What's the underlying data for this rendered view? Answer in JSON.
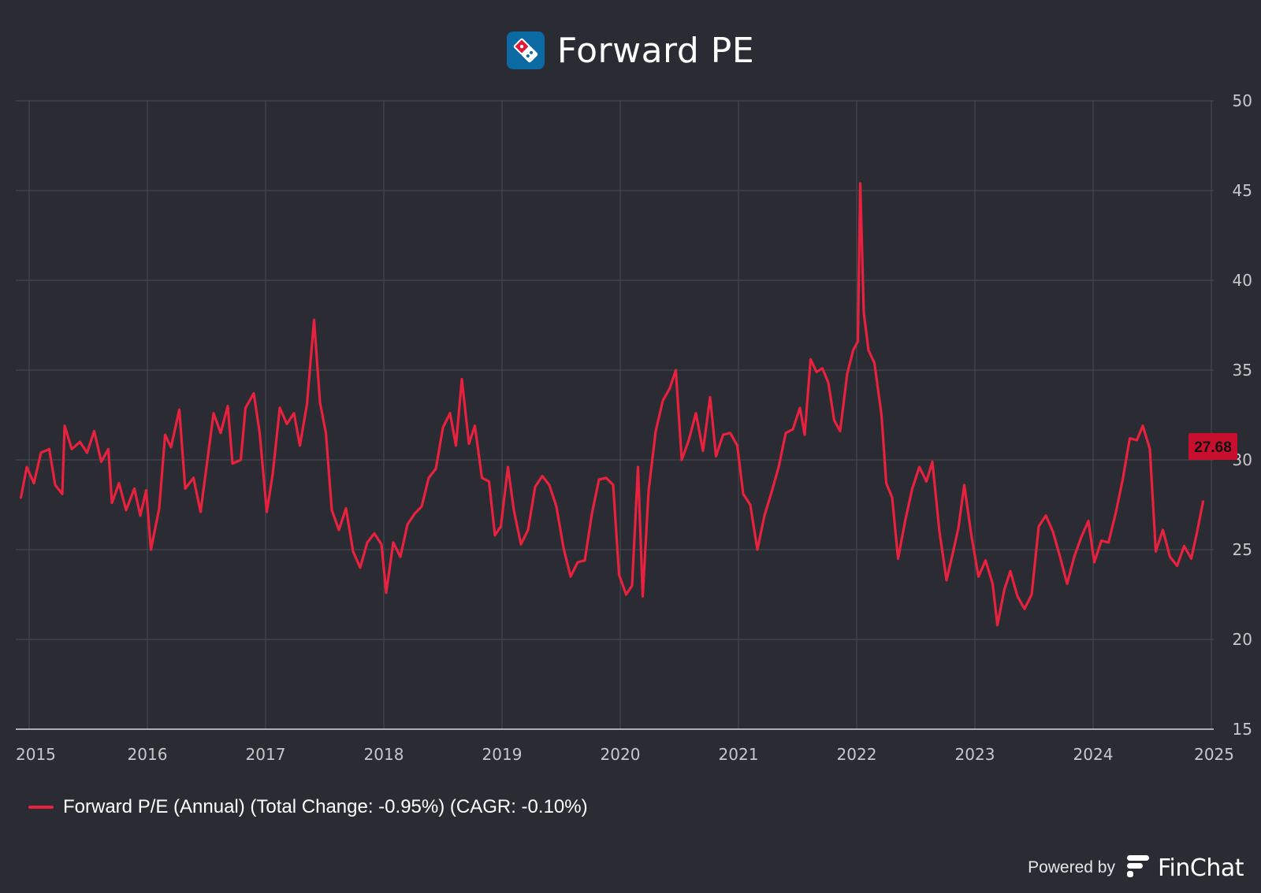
{
  "header": {
    "title": "Forward PE",
    "logo_icon": "dominos-logo-icon"
  },
  "legend": {
    "label": "Forward P/E (Annual) (Total Change: -0.95%) (CAGR: -0.10%)"
  },
  "footer": {
    "powered_label": "Powered by",
    "brand": "FinChat",
    "brand_icon": "finchat-logo-icon"
  },
  "colors": {
    "background": "#2b2c33",
    "series": "#e8213f",
    "grid": "#4a4b54",
    "axis_text": "#c8c8cc"
  },
  "chart_data": {
    "type": "line",
    "title": "Forward PE",
    "xlabel": "",
    "ylabel": "",
    "xlim": [
      2014.9,
      2025.0
    ],
    "ylim": [
      15,
      50
    ],
    "x_ticks": [
      "2015",
      "2016",
      "2017",
      "2018",
      "2019",
      "2020",
      "2021",
      "2022",
      "2023",
      "2024",
      "2025"
    ],
    "y_ticks": [
      15,
      20,
      25,
      30,
      35,
      40,
      45,
      50
    ],
    "y_axis_position": "right",
    "grid": true,
    "legend_position": "bottom-left",
    "last_value_label": "27.68",
    "series": [
      {
        "name": "Forward P/E (Annual) (Total Change: -0.95%) (CAGR: -0.10%)",
        "color": "#e8213f",
        "points": [
          [
            2014.93,
            27.9
          ],
          [
            2014.98,
            29.6
          ],
          [
            2015.04,
            28.7
          ],
          [
            2015.1,
            30.4
          ],
          [
            2015.17,
            30.6
          ],
          [
            2015.22,
            28.6
          ],
          [
            2015.28,
            28.1
          ],
          [
            2015.3,
            31.9
          ],
          [
            2015.36,
            30.6
          ],
          [
            2015.43,
            31.0
          ],
          [
            2015.49,
            30.4
          ],
          [
            2015.55,
            31.6
          ],
          [
            2015.61,
            29.9
          ],
          [
            2015.67,
            30.6
          ],
          [
            2015.7,
            27.6
          ],
          [
            2015.76,
            28.7
          ],
          [
            2015.82,
            27.2
          ],
          [
            2015.89,
            28.4
          ],
          [
            2015.94,
            26.9
          ],
          [
            2015.99,
            28.3
          ],
          [
            2016.03,
            25.0
          ],
          [
            2016.1,
            27.3
          ],
          [
            2016.15,
            31.4
          ],
          [
            2016.2,
            30.7
          ],
          [
            2016.27,
            32.8
          ],
          [
            2016.32,
            28.4
          ],
          [
            2016.39,
            29.0
          ],
          [
            2016.45,
            27.1
          ],
          [
            2016.51,
            30.1
          ],
          [
            2016.56,
            32.6
          ],
          [
            2016.62,
            31.5
          ],
          [
            2016.68,
            33.0
          ],
          [
            2016.72,
            29.8
          ],
          [
            2016.79,
            30.0
          ],
          [
            2016.83,
            32.9
          ],
          [
            2016.9,
            33.7
          ],
          [
            2016.95,
            31.5
          ],
          [
            2017.01,
            27.1
          ],
          [
            2017.06,
            29.2
          ],
          [
            2017.12,
            32.9
          ],
          [
            2017.18,
            32.0
          ],
          [
            2017.24,
            32.6
          ],
          [
            2017.29,
            30.8
          ],
          [
            2017.35,
            33.1
          ],
          [
            2017.41,
            37.8
          ],
          [
            2017.46,
            33.2
          ],
          [
            2017.51,
            31.5
          ],
          [
            2017.56,
            27.2
          ],
          [
            2017.62,
            26.1
          ],
          [
            2017.68,
            27.3
          ],
          [
            2017.74,
            24.9
          ],
          [
            2017.8,
            24.0
          ],
          [
            2017.86,
            25.4
          ],
          [
            2017.92,
            25.9
          ],
          [
            2017.98,
            25.3
          ],
          [
            2018.02,
            22.6
          ],
          [
            2018.08,
            25.4
          ],
          [
            2018.14,
            24.6
          ],
          [
            2018.2,
            26.4
          ],
          [
            2018.26,
            27.0
          ],
          [
            2018.32,
            27.4
          ],
          [
            2018.38,
            29.0
          ],
          [
            2018.44,
            29.5
          ],
          [
            2018.5,
            31.8
          ],
          [
            2018.56,
            32.6
          ],
          [
            2018.61,
            30.8
          ],
          [
            2018.66,
            34.5
          ],
          [
            2018.72,
            30.9
          ],
          [
            2018.77,
            31.9
          ],
          [
            2018.83,
            29.0
          ],
          [
            2018.89,
            28.8
          ],
          [
            2018.94,
            25.8
          ],
          [
            2018.99,
            26.3
          ],
          [
            2019.05,
            29.6
          ],
          [
            2019.1,
            27.2
          ],
          [
            2019.16,
            25.3
          ],
          [
            2019.22,
            26.1
          ],
          [
            2019.28,
            28.5
          ],
          [
            2019.34,
            29.1
          ],
          [
            2019.4,
            28.6
          ],
          [
            2019.46,
            27.4
          ],
          [
            2019.52,
            25.1
          ],
          [
            2019.58,
            23.5
          ],
          [
            2019.64,
            24.3
          ],
          [
            2019.7,
            24.4
          ],
          [
            2019.76,
            27.0
          ],
          [
            2019.82,
            28.9
          ],
          [
            2019.88,
            29.0
          ],
          [
            2019.94,
            28.6
          ],
          [
            2019.99,
            23.6
          ],
          [
            2020.05,
            22.5
          ],
          [
            2020.1,
            23.0
          ],
          [
            2020.15,
            29.6
          ],
          [
            2020.19,
            22.4
          ],
          [
            2020.24,
            28.3
          ],
          [
            2020.3,
            31.6
          ],
          [
            2020.36,
            33.3
          ],
          [
            2020.42,
            34.0
          ],
          [
            2020.47,
            35.0
          ],
          [
            2020.52,
            30.0
          ],
          [
            2020.58,
            31.1
          ],
          [
            2020.64,
            32.6
          ],
          [
            2020.7,
            30.5
          ],
          [
            2020.76,
            33.5
          ],
          [
            2020.81,
            30.2
          ],
          [
            2020.87,
            31.4
          ],
          [
            2020.93,
            31.5
          ],
          [
            2020.99,
            30.8
          ],
          [
            2021.04,
            28.1
          ],
          [
            2021.1,
            27.5
          ],
          [
            2021.16,
            25.0
          ],
          [
            2021.22,
            26.9
          ],
          [
            2021.28,
            28.2
          ],
          [
            2021.34,
            29.6
          ],
          [
            2021.4,
            31.5
          ],
          [
            2021.46,
            31.7
          ],
          [
            2021.52,
            32.9
          ],
          [
            2021.56,
            31.4
          ],
          [
            2021.61,
            35.6
          ],
          [
            2021.66,
            34.9
          ],
          [
            2021.71,
            35.1
          ],
          [
            2021.76,
            34.3
          ],
          [
            2021.81,
            32.2
          ],
          [
            2021.86,
            31.6
          ],
          [
            2021.92,
            34.8
          ],
          [
            2021.97,
            36.1
          ],
          [
            2022.01,
            36.6
          ],
          [
            2022.03,
            45.4
          ],
          [
            2022.06,
            38.2
          ],
          [
            2022.1,
            36.1
          ],
          [
            2022.15,
            35.4
          ],
          [
            2022.21,
            32.5
          ],
          [
            2022.25,
            28.7
          ],
          [
            2022.3,
            27.9
          ],
          [
            2022.35,
            24.5
          ],
          [
            2022.41,
            26.6
          ],
          [
            2022.47,
            28.4
          ],
          [
            2022.53,
            29.6
          ],
          [
            2022.59,
            28.8
          ],
          [
            2022.64,
            29.9
          ],
          [
            2022.7,
            26.0
          ],
          [
            2022.76,
            23.3
          ],
          [
            2022.82,
            25.0
          ],
          [
            2022.86,
            26.2
          ],
          [
            2022.91,
            28.6
          ],
          [
            2022.97,
            25.8
          ],
          [
            2023.03,
            23.5
          ],
          [
            2023.09,
            24.4
          ],
          [
            2023.15,
            23.1
          ],
          [
            2023.19,
            20.8
          ],
          [
            2023.25,
            22.8
          ],
          [
            2023.3,
            23.8
          ],
          [
            2023.36,
            22.4
          ],
          [
            2023.42,
            21.7
          ],
          [
            2023.48,
            22.5
          ],
          [
            2023.54,
            26.3
          ],
          [
            2023.6,
            26.9
          ],
          [
            2023.66,
            26.0
          ],
          [
            2023.72,
            24.6
          ],
          [
            2023.78,
            23.1
          ],
          [
            2023.84,
            24.6
          ],
          [
            2023.9,
            25.7
          ],
          [
            2023.96,
            26.6
          ],
          [
            2024.01,
            24.3
          ],
          [
            2024.07,
            25.5
          ],
          [
            2024.13,
            25.4
          ],
          [
            2024.19,
            27.0
          ],
          [
            2024.25,
            28.9
          ],
          [
            2024.31,
            31.2
          ],
          [
            2024.37,
            31.1
          ],
          [
            2024.42,
            31.9
          ],
          [
            2024.48,
            30.6
          ],
          [
            2024.53,
            24.9
          ],
          [
            2024.59,
            26.1
          ],
          [
            2024.65,
            24.6
          ],
          [
            2024.71,
            24.1
          ],
          [
            2024.77,
            25.2
          ],
          [
            2024.83,
            24.5
          ],
          [
            2024.88,
            26.0
          ],
          [
            2024.93,
            27.68
          ]
        ]
      }
    ]
  }
}
